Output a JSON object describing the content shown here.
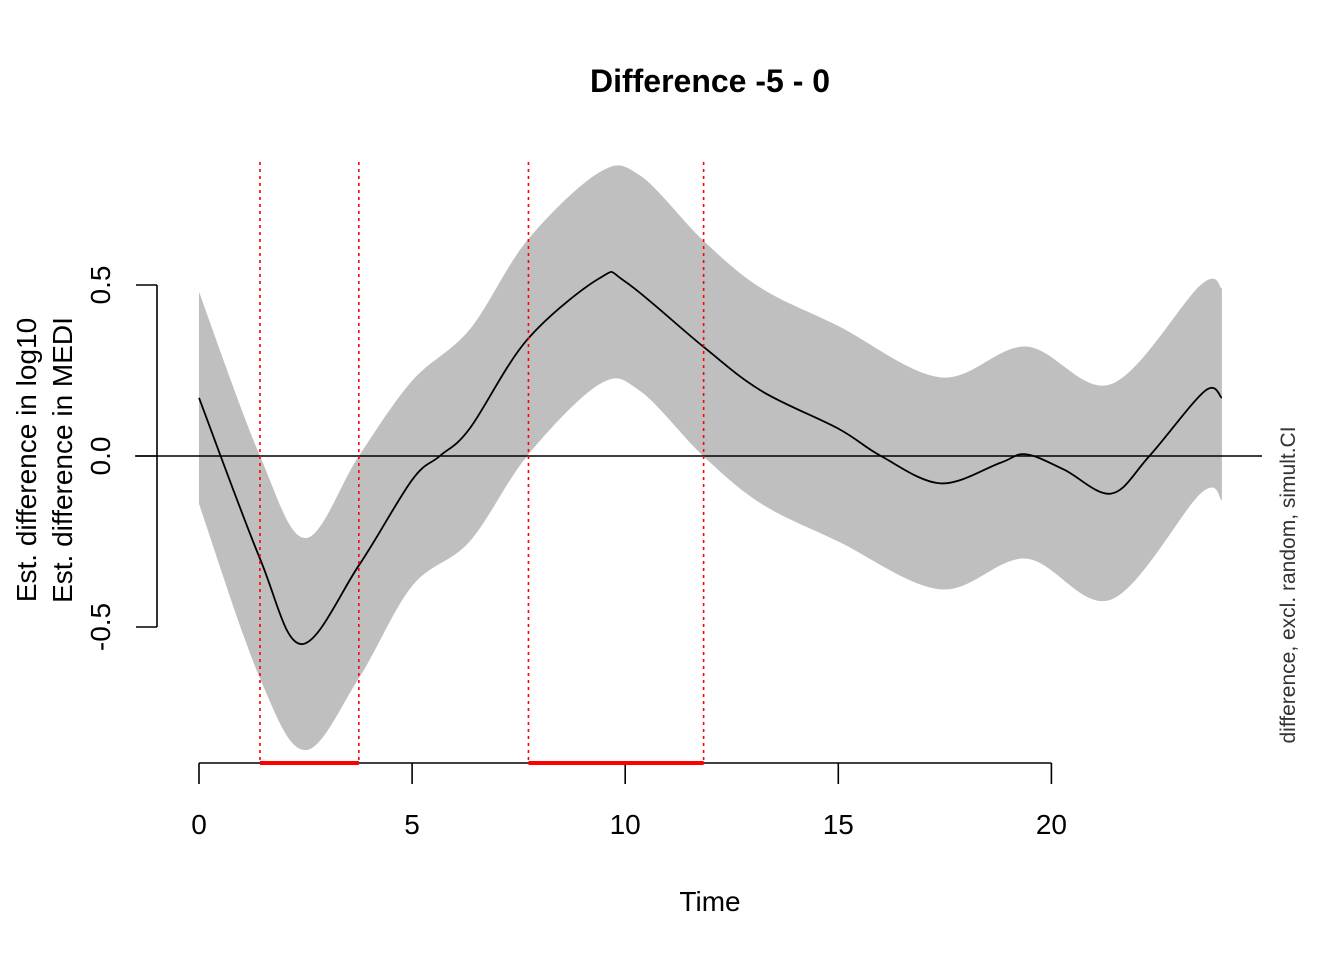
{
  "chart_data": {
    "type": "line",
    "title": "Difference -5 - 0",
    "xlabel": "Time",
    "ylabel_lines": [
      "Est. difference in log10",
      "Est. difference in MEDI"
    ],
    "right_label": "difference, excl. random, simult.CI",
    "x_ticks": [
      0,
      5,
      10,
      15,
      20
    ],
    "y_ticks": [
      -0.5,
      0.0,
      0.5
    ],
    "y_tick_labels": [
      "-0.5",
      "0.0",
      "0.5"
    ],
    "xlim": [
      0,
      24
    ],
    "colors": {
      "band": "#bfbfbf",
      "line": "#000000",
      "significance": "#ff0000"
    },
    "series": [
      {
        "name": "estimate",
        "x": [
          0,
          1.43,
          2.4,
          3.75,
          5,
          5.65,
          6.35,
          7.7,
          9.4,
          10,
          11.83,
          13.2,
          15,
          16,
          17.4,
          18.8,
          19.4,
          20.3,
          21.4,
          22.3,
          23.6,
          24
        ],
        "y": [
          0.17,
          -0.3,
          -0.55,
          -0.32,
          -0.07,
          0,
          0.08,
          0.34,
          0.52,
          0.51,
          0.32,
          0.19,
          0.08,
          0,
          -0.08,
          -0.02,
          0.005,
          -0.04,
          -0.11,
          0,
          0.19,
          0.17
        ]
      },
      {
        "name": "ci_upper",
        "x": [
          0,
          1.43,
          2.5,
          3.75,
          5,
          6.35,
          7.7,
          9.4,
          10.35,
          11.83,
          13.2,
          15,
          17.4,
          19.4,
          21.4,
          23.5,
          24
        ],
        "y": [
          0.48,
          0,
          -0.24,
          0,
          0.22,
          0.37,
          0.63,
          0.83,
          0.82,
          0.63,
          0.49,
          0.38,
          0.23,
          0.32,
          0.21,
          0.5,
          0.49
        ]
      },
      {
        "name": "ci_lower",
        "x": [
          0,
          1.43,
          2.5,
          3.75,
          5,
          6.35,
          7.7,
          9.4,
          10.35,
          11.83,
          13.2,
          15,
          17.4,
          19.4,
          21.4,
          23.5,
          24
        ],
        "y": [
          -0.14,
          -0.65,
          -0.86,
          -0.65,
          -0.38,
          -0.25,
          0,
          0.21,
          0.19,
          0,
          -0.14,
          -0.25,
          -0.39,
          -0.3,
          -0.42,
          -0.11,
          -0.13
        ]
      }
    ],
    "significant_intervals": [
      [
        1.43,
        3.75
      ],
      [
        7.73,
        11.84
      ]
    ],
    "reference_line_y": 0
  }
}
